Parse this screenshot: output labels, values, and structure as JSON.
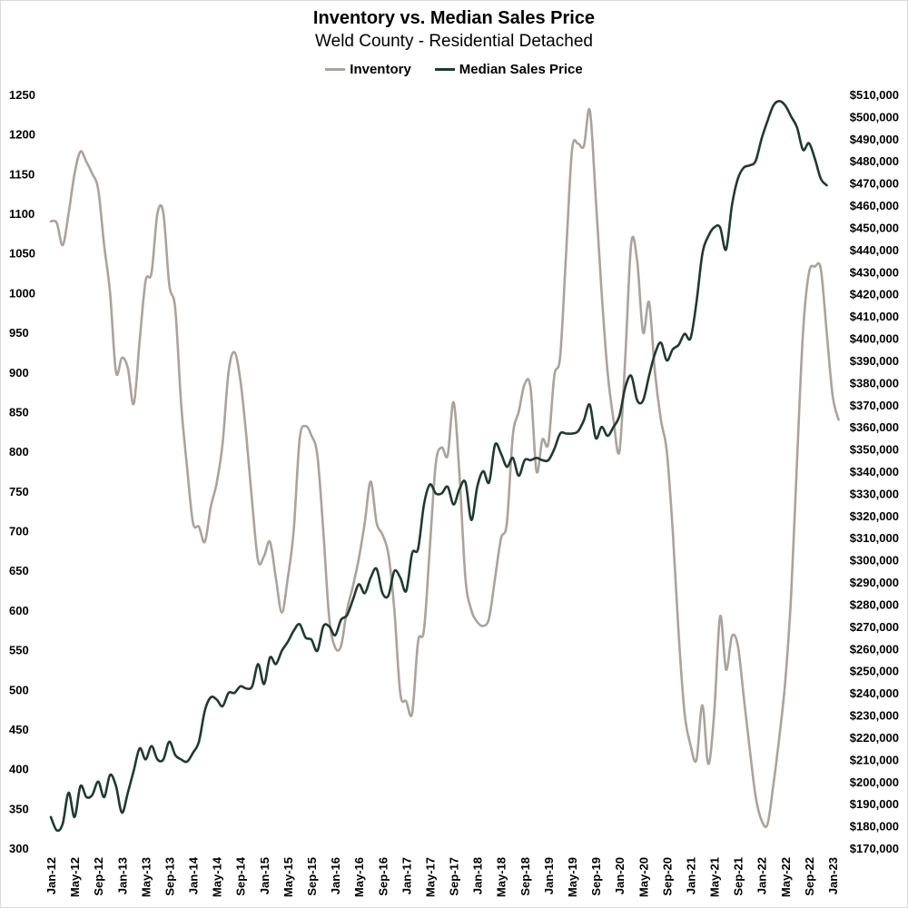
{
  "chart_data": {
    "type": "line",
    "title": "Inventory vs. Median Sales Price",
    "subtitle": "Weld County - Residential Detached",
    "legend_position": "top-center",
    "grid": false,
    "colors": {
      "inventory": "#aca29b",
      "median_sales_price": "#1e3a30"
    },
    "x_tick_labels": [
      "Jan-12",
      "May-12",
      "Sep-12",
      "Jan-13",
      "May-13",
      "Sep-13",
      "Jan-14",
      "May-14",
      "Sep-14",
      "Jan-15",
      "May-15",
      "Sep-15",
      "Jan-16",
      "May-16",
      "Sep-16",
      "Jan-17",
      "May-17",
      "Sep-17",
      "Jan-18",
      "May-18",
      "Sep-18",
      "Jan-19",
      "May-19",
      "Sep-19",
      "Jan-20",
      "May-20",
      "Sep-20",
      "Jan-21",
      "May-21",
      "Sep-21",
      "Jan-22",
      "May-22",
      "Sep-22",
      "Jan-23"
    ],
    "y_left": {
      "label": "Inventory",
      "ylim": [
        300,
        1250
      ],
      "ticks": [
        "1250",
        "1200",
        "1150",
        "1100",
        "1050",
        "1000",
        "950",
        "900",
        "850",
        "800",
        "750",
        "700",
        "650",
        "600",
        "550",
        "500",
        "450",
        "400",
        "350",
        "300"
      ]
    },
    "y_right": {
      "label": "Median Sales Price",
      "ylim": [
        170000,
        510000
      ],
      "ticks": [
        "$510,000",
        "$500,000",
        "$490,000",
        "$480,000",
        "$470,000",
        "$460,000",
        "$450,000",
        "$440,000",
        "$430,000",
        "$420,000",
        "$410,000",
        "$400,000",
        "$390,000",
        "$380,000",
        "$370,000",
        "$360,000",
        "$350,000",
        "$340,000",
        "$330,000",
        "$320,000",
        "$310,000",
        "$300,000",
        "$290,000",
        "$280,000",
        "$270,000",
        "$260,000",
        "$250,000",
        "$240,000",
        "$230,000",
        "$220,000",
        "$210,000",
        "$200,000",
        "$190,000",
        "$180,000",
        "$170,000"
      ]
    },
    "series": [
      {
        "name": "Inventory",
        "axis": "left",
        "points": [
          [
            0,
            1090
          ],
          [
            1,
            1088
          ],
          [
            2,
            1060
          ],
          [
            3,
            1100
          ],
          [
            4,
            1150
          ],
          [
            5,
            1178
          ],
          [
            6,
            1165
          ],
          [
            7,
            1150
          ],
          [
            8,
            1130
          ],
          [
            9,
            1060
          ],
          [
            10,
            1000
          ],
          [
            11,
            900
          ],
          [
            12,
            918
          ],
          [
            13,
            905
          ],
          [
            14,
            860
          ],
          [
            15,
            940
          ],
          [
            16,
            1015
          ],
          [
            17,
            1025
          ],
          [
            18,
            1100
          ],
          [
            19,
            1100
          ],
          [
            20,
            1010
          ],
          [
            21,
            980
          ],
          [
            22,
            860
          ],
          [
            23,
            780
          ],
          [
            24,
            710
          ],
          [
            25,
            705
          ],
          [
            26,
            686
          ],
          [
            27,
            730
          ],
          [
            28,
            760
          ],
          [
            29,
            810
          ],
          [
            30,
            900
          ],
          [
            31,
            925
          ],
          [
            32,
            890
          ],
          [
            33,
            820
          ],
          [
            34,
            735
          ],
          [
            35,
            662
          ],
          [
            36,
            668
          ],
          [
            37,
            686
          ],
          [
            38,
            640
          ],
          [
            39,
            597
          ],
          [
            40,
            640
          ],
          [
            41,
            700
          ],
          [
            42,
            815
          ],
          [
            43,
            832
          ],
          [
            44,
            820
          ],
          [
            45,
            795
          ],
          [
            46,
            700
          ],
          [
            47,
            590
          ],
          [
            48,
            553
          ],
          [
            49,
            555
          ],
          [
            50,
            600
          ],
          [
            51,
            630
          ],
          [
            52,
            665
          ],
          [
            53,
            710
          ],
          [
            54,
            762
          ],
          [
            55,
            710
          ],
          [
            56,
            695
          ],
          [
            57,
            670
          ],
          [
            58,
            600
          ],
          [
            59,
            495
          ],
          [
            60,
            485
          ],
          [
            61,
            470
          ],
          [
            62,
            560
          ],
          [
            63,
            575
          ],
          [
            64,
            680
          ],
          [
            65,
            785
          ],
          [
            66,
            805
          ],
          [
            67,
            795
          ],
          [
            68,
            862
          ],
          [
            69,
            770
          ],
          [
            70,
            640
          ],
          [
            71,
            600
          ],
          [
            72,
            585
          ],
          [
            73,
            580
          ],
          [
            74,
            590
          ],
          [
            75,
            640
          ],
          [
            76,
            690
          ],
          [
            77,
            710
          ],
          [
            78,
            820
          ],
          [
            79,
            850
          ],
          [
            80,
            885
          ],
          [
            81,
            880
          ],
          [
            82,
            775
          ],
          [
            83,
            815
          ],
          [
            84,
            810
          ],
          [
            85,
            895
          ],
          [
            86,
            920
          ],
          [
            87,
            1050
          ],
          [
            88,
            1180
          ],
          [
            89,
            1188
          ],
          [
            90,
            1185
          ],
          [
            91,
            1230
          ],
          [
            92,
            1120
          ],
          [
            93,
            1000
          ],
          [
            94,
            900
          ],
          [
            95,
            840
          ],
          [
            96,
            800
          ],
          [
            97,
            920
          ],
          [
            98,
            1063
          ],
          [
            99,
            1040
          ],
          [
            100,
            950
          ],
          [
            101,
            988
          ],
          [
            102,
            900
          ],
          [
            103,
            840
          ],
          [
            104,
            800
          ],
          [
            105,
            700
          ],
          [
            106,
            570
          ],
          [
            107,
            470
          ],
          [
            108,
            430
          ],
          [
            109,
            411
          ],
          [
            110,
            480
          ],
          [
            111,
            406
          ],
          [
            112,
            470
          ],
          [
            113,
            592
          ],
          [
            114,
            525
          ],
          [
            115,
            567
          ],
          [
            116,
            555
          ],
          [
            117,
            490
          ],
          [
            118,
            425
          ],
          [
            119,
            365
          ],
          [
            120,
            335
          ],
          [
            121,
            330
          ],
          [
            122,
            380
          ],
          [
            123,
            440
          ],
          [
            124,
            510
          ],
          [
            125,
            620
          ],
          [
            126,
            790
          ],
          [
            127,
            950
          ],
          [
            128,
            1025
          ],
          [
            129,
            1033
          ],
          [
            130,
            1030
          ],
          [
            131,
            950
          ],
          [
            132,
            870
          ],
          [
            133,
            840
          ]
        ]
      },
      {
        "name": "Median Sales Price",
        "axis": "right",
        "points": [
          [
            0,
            184000
          ],
          [
            1,
            178000
          ],
          [
            2,
            181000
          ],
          [
            3,
            195000
          ],
          [
            4,
            184000
          ],
          [
            5,
            198000
          ],
          [
            6,
            193000
          ],
          [
            7,
            194000
          ],
          [
            8,
            200000
          ],
          [
            9,
            193000
          ],
          [
            10,
            203000
          ],
          [
            11,
            198000
          ],
          [
            12,
            186000
          ],
          [
            13,
            195000
          ],
          [
            14,
            205000
          ],
          [
            15,
            215000
          ],
          [
            16,
            210000
          ],
          [
            17,
            216000
          ],
          [
            18,
            210000
          ],
          [
            19,
            210000
          ],
          [
            20,
            218000
          ],
          [
            21,
            212000
          ],
          [
            22,
            210000
          ],
          [
            23,
            209000
          ],
          [
            24,
            213000
          ],
          [
            25,
            218000
          ],
          [
            26,
            232000
          ],
          [
            27,
            238000
          ],
          [
            28,
            237000
          ],
          [
            29,
            234000
          ],
          [
            30,
            240000
          ],
          [
            31,
            240000
          ],
          [
            32,
            243000
          ],
          [
            33,
            242000
          ],
          [
            34,
            243000
          ],
          [
            35,
            253000
          ],
          [
            36,
            244000
          ],
          [
            37,
            256000
          ],
          [
            38,
            253000
          ],
          [
            39,
            259000
          ],
          [
            40,
            263000
          ],
          [
            41,
            268000
          ],
          [
            42,
            271000
          ],
          [
            43,
            265000
          ],
          [
            44,
            264000
          ],
          [
            45,
            259000
          ],
          [
            46,
            270000
          ],
          [
            47,
            270000
          ],
          [
            48,
            266000
          ],
          [
            49,
            273000
          ],
          [
            50,
            275000
          ],
          [
            51,
            282000
          ],
          [
            52,
            289000
          ],
          [
            53,
            285000
          ],
          [
            54,
            292000
          ],
          [
            55,
            296000
          ],
          [
            56,
            285000
          ],
          [
            57,
            284000
          ],
          [
            58,
            295000
          ],
          [
            59,
            292000
          ],
          [
            60,
            286000
          ],
          [
            61,
            303000
          ],
          [
            62,
            305000
          ],
          [
            63,
            325000
          ],
          [
            64,
            334000
          ],
          [
            65,
            330000
          ],
          [
            66,
            330000
          ],
          [
            67,
            333000
          ],
          [
            68,
            325000
          ],
          [
            69,
            332000
          ],
          [
            70,
            335000
          ],
          [
            71,
            318000
          ],
          [
            72,
            333000
          ],
          [
            73,
            340000
          ],
          [
            74,
            335000
          ],
          [
            75,
            352000
          ],
          [
            76,
            348000
          ],
          [
            77,
            342000
          ],
          [
            78,
            346000
          ],
          [
            79,
            338000
          ],
          [
            80,
            345000
          ],
          [
            81,
            345000
          ],
          [
            82,
            346000
          ],
          [
            83,
            345000
          ],
          [
            84,
            345000
          ],
          [
            85,
            350000
          ],
          [
            86,
            357000
          ],
          [
            87,
            357000
          ],
          [
            88,
            357000
          ],
          [
            89,
            358000
          ],
          [
            90,
            363000
          ],
          [
            91,
            370000
          ],
          [
            92,
            355000
          ],
          [
            93,
            360000
          ],
          [
            94,
            356000
          ],
          [
            95,
            360000
          ],
          [
            96,
            365000
          ],
          [
            97,
            378000
          ],
          [
            98,
            383000
          ],
          [
            99,
            372000
          ],
          [
            100,
            372000
          ],
          [
            101,
            383000
          ],
          [
            102,
            393000
          ],
          [
            103,
            398000
          ],
          [
            104,
            390000
          ],
          [
            105,
            395000
          ],
          [
            106,
            397000
          ],
          [
            107,
            402000
          ],
          [
            108,
            400000
          ],
          [
            109,
            416000
          ],
          [
            110,
            438000
          ],
          [
            111,
            446000
          ],
          [
            112,
            450000
          ],
          [
            113,
            450000
          ],
          [
            114,
            440000
          ],
          [
            115,
            460000
          ],
          [
            116,
            472000
          ],
          [
            117,
            477000
          ],
          [
            118,
            478000
          ],
          [
            119,
            480000
          ],
          [
            120,
            490000
          ],
          [
            121,
            498000
          ],
          [
            122,
            505000
          ],
          [
            123,
            507000
          ],
          [
            124,
            505000
          ],
          [
            125,
            500000
          ],
          [
            126,
            495000
          ],
          [
            127,
            485000
          ],
          [
            128,
            488000
          ],
          [
            129,
            481000
          ],
          [
            130,
            472000
          ],
          [
            131,
            469000
          ]
        ]
      }
    ]
  },
  "legend": {
    "items": [
      {
        "label": "Inventory",
        "color": "#aca29b"
      },
      {
        "label": "Median Sales Price",
        "color": "#1e3a30"
      }
    ]
  }
}
